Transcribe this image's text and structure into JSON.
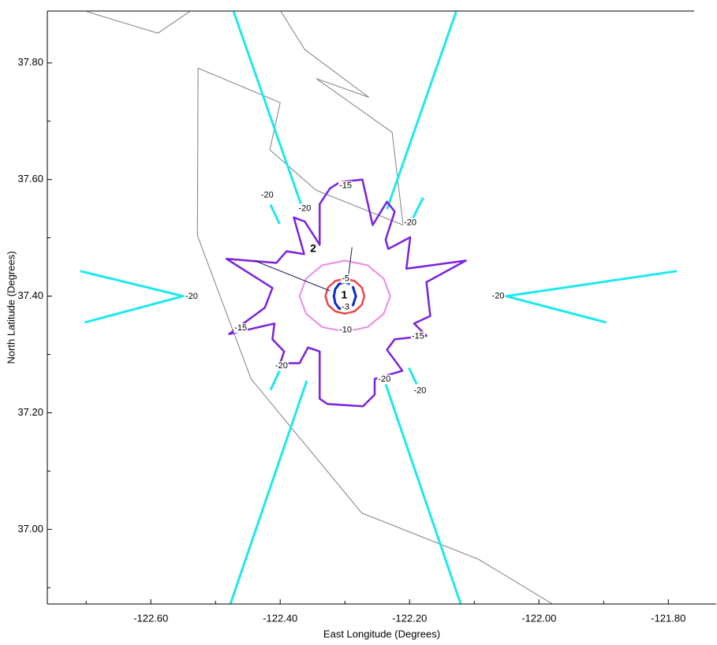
{
  "chart_data": {
    "type": "contour",
    "x_label": "East Longitude (Degrees)",
    "y_label": "North Latitude (Degrees)",
    "xlim": [
      -122.76,
      -121.726
    ],
    "ylim": [
      36.872,
      37.889
    ],
    "xticks": [
      {
        "value": -122.6,
        "label": "-122.60"
      },
      {
        "value": -122.4,
        "label": "-122.40"
      },
      {
        "value": -122.2,
        "label": "-122.20"
      },
      {
        "value": -122.0,
        "label": "-122.00"
      },
      {
        "value": -121.8,
        "label": "-121.80"
      }
    ],
    "xminorticks": [
      -122.7,
      -122.5,
      -122.3,
      -122.1,
      -121.9
    ],
    "yticks": [
      {
        "value": 37.0,
        "label": "37.00"
      },
      {
        "value": 37.2,
        "label": "37.20"
      },
      {
        "value": 37.4,
        "label": "37.40"
      },
      {
        "value": 37.6,
        "label": "37.60"
      },
      {
        "value": 37.8,
        "label": "37.80"
      }
    ],
    "yminorticks": [
      36.9,
      37.1,
      37.3,
      37.5,
      37.7
    ],
    "coastline": {
      "color": "#808080",
      "width": 1,
      "x": [
        -122.699,
        -122.589,
        -122.54,
        null,
        -122.527,
        -122.528,
        -122.445,
        -122.274,
        -122.094,
        -121.979,
        null,
        -122.527,
        -122.4,
        -122.416,
        -122.345,
        -122.21,
        null,
        -122.399,
        -122.362,
        -122.263,
        -122.344,
        -122.227,
        -122.21
      ],
      "y": [
        37.888,
        37.851,
        37.888,
        null,
        37.791,
        37.504,
        37.258,
        37.028,
        36.949,
        36.872,
        null,
        37.791,
        37.732,
        37.651,
        37.582,
        37.522,
        null,
        37.888,
        37.823,
        37.741,
        37.773,
        37.681,
        37.522
      ]
    },
    "contours": [
      {
        "level": -20,
        "color": "#1ee8ee",
        "width": 3,
        "x": [
          -122.472,
          -122.368,
          null,
          -122.128,
          -122.235,
          null,
          -122.709,
          -122.55,
          -122.702,
          null,
          -121.787,
          -122.051,
          -121.896,
          null,
          -122.477,
          -122.359,
          null,
          -122.121,
          -122.237,
          null,
          -122.415,
          -122.401,
          null,
          -122.179,
          -122.196,
          null,
          -122.415,
          -122.401,
          null,
          -122.201,
          -122.189
        ],
        "y": [
          37.888,
          37.558,
          null,
          37.888,
          37.549,
          null,
          37.443,
          37.4,
          37.355,
          null,
          37.443,
          37.4,
          37.355,
          null,
          36.872,
          37.255,
          null,
          36.872,
          37.249,
          null,
          37.557,
          37.524,
          null,
          37.569,
          37.531,
          null,
          37.239,
          37.272,
          null,
          37.277,
          37.249
        ]
      },
      {
        "level": -15,
        "color": "#7b22dd",
        "width": 2.5,
        "x": [
          -122.307,
          -122.273,
          -122.257,
          -122.235,
          -122.223,
          -122.237,
          -122.233,
          -122.199,
          -122.205,
          -122.113,
          -122.174,
          -122.168,
          -122.193,
          -122.174,
          -122.223,
          -122.235,
          -122.211,
          -122.254,
          -122.254,
          -122.272,
          -122.327,
          -122.339,
          -122.339,
          -122.357,
          -122.37,
          -122.4,
          -122.394,
          -122.412,
          -122.409,
          -122.479,
          -122.424,
          -122.412,
          -122.483,
          -122.406,
          -122.39,
          -122.363,
          -122.379,
          -122.362,
          -122.339,
          -122.339,
          -122.323,
          -122.307
        ],
        "y": [
          37.596,
          37.6,
          37.522,
          37.562,
          37.545,
          37.497,
          37.481,
          37.501,
          37.447,
          37.461,
          37.424,
          37.366,
          37.353,
          37.332,
          37.326,
          37.308,
          37.272,
          37.258,
          37.231,
          37.211,
          37.215,
          37.224,
          37.305,
          37.312,
          37.285,
          37.285,
          37.305,
          37.326,
          37.353,
          37.335,
          37.38,
          37.414,
          37.464,
          37.457,
          37.477,
          37.472,
          37.535,
          37.528,
          37.488,
          37.558,
          37.585,
          37.596
        ]
      },
      {
        "level": -10,
        "color": "#ee88e6",
        "width": 2,
        "x": [
          -122.23,
          -122.24,
          -122.265,
          -122.3,
          -122.335,
          -122.36,
          -122.37,
          -122.36,
          -122.335,
          -122.3,
          -122.265,
          -122.24,
          -122.23
        ],
        "y": [
          37.4,
          37.43,
          37.453,
          37.461,
          37.453,
          37.43,
          37.4,
          37.37,
          37.347,
          37.339,
          37.347,
          37.37,
          37.4
        ]
      },
      {
        "level": -5,
        "color": "#ee4444",
        "width": 2.5,
        "x": [
          -122.27,
          -122.274,
          -122.285,
          -122.3,
          -122.315,
          -122.326,
          -122.33,
          -122.326,
          -122.315,
          -122.3,
          -122.285,
          -122.274,
          -122.27
        ],
        "y": [
          37.4,
          37.415,
          37.426,
          37.43,
          37.426,
          37.415,
          37.4,
          37.385,
          37.374,
          37.37,
          37.374,
          37.385,
          37.4
        ]
      },
      {
        "level": -3,
        "color": "#0a2acc",
        "width": 3,
        "x": [
          -122.292,
          -122.3,
          -122.309,
          -122.315,
          -122.317,
          -122.315,
          -122.309,
          -122.3,
          -122.292,
          null,
          -122.288,
          -122.283,
          -122.288
        ],
        "y": [
          37.421,
          37.424,
          37.421,
          37.412,
          37.4,
          37.388,
          37.379,
          37.376,
          37.379,
          null,
          37.383,
          37.4,
          37.417
        ]
      }
    ],
    "rays": {
      "color": "#1a1a5a",
      "width": 1,
      "x": [
        -122.44,
        -122.323,
        null,
        -122.289,
        -122.295
      ],
      "y": [
        37.461,
        37.409,
        null,
        37.484,
        37.431
      ]
    },
    "contour_labels": [
      {
        "value": -20,
        "x": -122.42,
        "y": 37.573
      },
      {
        "value": -20,
        "x": -122.362,
        "y": 37.55
      },
      {
        "value": -20,
        "x": -122.199,
        "y": 37.526
      },
      {
        "value": -20,
        "x": -122.537,
        "y": 37.399
      },
      {
        "value": -20,
        "x": -122.063,
        "y": 37.4
      },
      {
        "value": -20,
        "x": -122.398,
        "y": 37.28
      },
      {
        "value": -20,
        "x": -122.239,
        "y": 37.257
      },
      {
        "value": -20,
        "x": -122.184,
        "y": 37.238
      },
      {
        "value": -15,
        "x": -122.299,
        "y": 37.589
      },
      {
        "value": -15,
        "x": -122.461,
        "y": 37.345
      },
      {
        "value": -15,
        "x": -122.187,
        "y": 37.331
      },
      {
        "value": -10,
        "x": -122.299,
        "y": 37.342
      },
      {
        "value": -5,
        "x": -122.299,
        "y": 37.43
      },
      {
        "value": -3,
        "x": -122.299,
        "y": 37.381
      }
    ],
    "point_labels": [
      {
        "text": "1",
        "x": -122.301,
        "y": 37.401
      },
      {
        "text": "2",
        "x": -122.349,
        "y": 37.481
      }
    ]
  }
}
